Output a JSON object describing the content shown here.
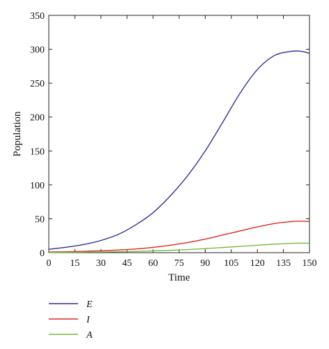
{
  "chart_data": {
    "type": "line",
    "xlabel": "Time",
    "ylabel": "Population",
    "xlim": [
      0,
      150
    ],
    "ylim": [
      0,
      350
    ],
    "xticks": [
      0,
      15,
      30,
      45,
      60,
      75,
      90,
      105,
      120,
      135,
      150
    ],
    "yticks": [
      0,
      50,
      100,
      150,
      200,
      250,
      300,
      350
    ],
    "grid": false,
    "legend_position": "bottom-left",
    "x": [
      0,
      10,
      20,
      30,
      40,
      50,
      60,
      70,
      80,
      90,
      100,
      110,
      120,
      130,
      140,
      145,
      150
    ],
    "series": [
      {
        "name": "E",
        "color": "#2e3192",
        "values": [
          5,
          8,
          12,
          18,
          27,
          41,
          59,
          84,
          114,
          150,
          192,
          235,
          270,
          291,
          297,
          297,
          294
        ]
      },
      {
        "name": "I",
        "color": "#e0261f",
        "values": [
          1,
          1.4,
          2,
          2.8,
          3.9,
          5.5,
          7.8,
          11,
          15,
          20,
          26,
          32,
          38,
          43,
          46,
          46.5,
          46
        ]
      },
      {
        "name": "A",
        "color": "#77b843",
        "values": [
          0.3,
          0.5,
          0.7,
          1,
          1.4,
          1.9,
          2.6,
          3.5,
          4.6,
          6,
          7.6,
          9.3,
          11,
          12.6,
          13.8,
          14,
          14
        ]
      }
    ]
  }
}
